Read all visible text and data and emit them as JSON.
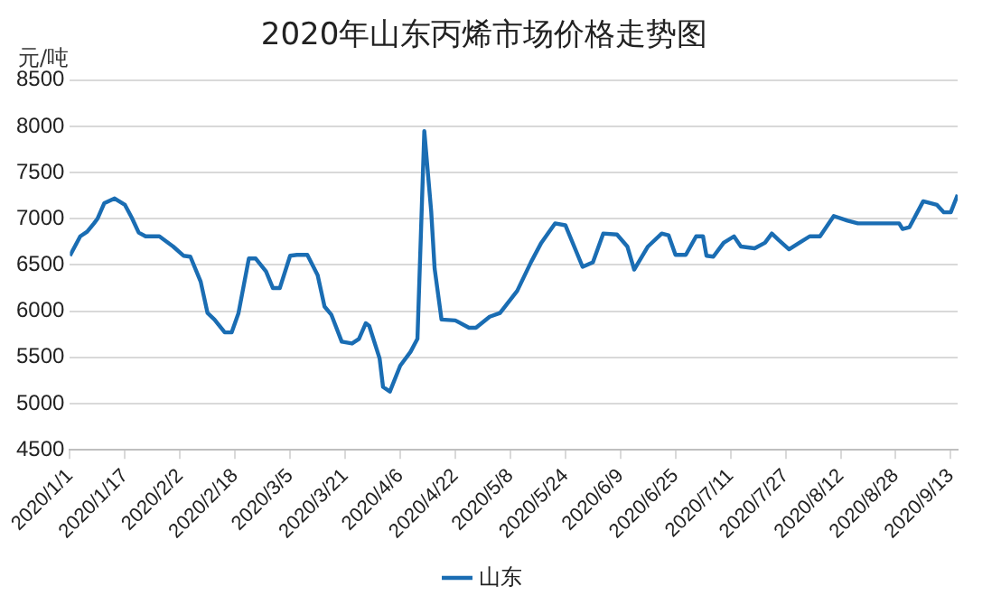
{
  "chart_data": {
    "type": "line",
    "title": "2020年山东丙烯市场价格走势图",
    "ylabel": "元/吨",
    "x": [
      "2020-01-01",
      "2020-01-04",
      "2020-01-06",
      "2020-01-08",
      "2020-01-09",
      "2020-01-11",
      "2020-01-14",
      "2020-01-17",
      "2020-01-19",
      "2020-01-21",
      "2020-01-23",
      "2020-01-27",
      "2020-01-31",
      "2020-02-03",
      "2020-02-05",
      "2020-02-08",
      "2020-02-10",
      "2020-02-12",
      "2020-02-15",
      "2020-02-17",
      "2020-02-19",
      "2020-02-22",
      "2020-02-24",
      "2020-02-27",
      "2020-02-29",
      "2020-03-02",
      "2020-03-05",
      "2020-03-07",
      "2020-03-10",
      "2020-03-13",
      "2020-03-15",
      "2020-03-17",
      "2020-03-20",
      "2020-03-23",
      "2020-03-25",
      "2020-03-27",
      "2020-03-28",
      "2020-03-31",
      "2020-04-01",
      "2020-04-03",
      "2020-04-06",
      "2020-04-09",
      "2020-04-11",
      "2020-04-13",
      "2020-04-15",
      "2020-04-16",
      "2020-04-18",
      "2020-04-22",
      "2020-04-26",
      "2020-04-28",
      "2020-05-02",
      "2020-05-05",
      "2020-05-10",
      "2020-05-14",
      "2020-05-17",
      "2020-05-21",
      "2020-05-24",
      "2020-05-29",
      "2020-06-01",
      "2020-06-04",
      "2020-06-08",
      "2020-06-11",
      "2020-06-13",
      "2020-06-17",
      "2020-06-21",
      "2020-06-23",
      "2020-06-25",
      "2020-06-28",
      "2020-07-01",
      "2020-07-03",
      "2020-07-04",
      "2020-07-06",
      "2020-07-09",
      "2020-07-12",
      "2020-07-14",
      "2020-07-18",
      "2020-07-21",
      "2020-07-23",
      "2020-07-25",
      "2020-07-28",
      "2020-07-31",
      "2020-08-03",
      "2020-08-06",
      "2020-08-10",
      "2020-08-14",
      "2020-08-17",
      "2020-08-29",
      "2020-08-30",
      "2020-09-01",
      "2020-09-05",
      "2020-09-09",
      "2020-09-11",
      "2020-09-13",
      "2020-09-15"
    ],
    "series": [
      {
        "name": "山东",
        "color": "#1a6db3",
        "values": [
          6600,
          6810,
          6860,
          6950,
          7000,
          7170,
          7220,
          7150,
          7010,
          6850,
          6810,
          6810,
          6700,
          6600,
          6590,
          6320,
          5980,
          5910,
          5770,
          5770,
          5980,
          6570,
          6570,
          6430,
          6250,
          6250,
          6600,
          6610,
          6610,
          6390,
          6050,
          5960,
          5670,
          5650,
          5700,
          5870,
          5840,
          5490,
          5180,
          5130,
          5410,
          5560,
          5700,
          7950,
          7080,
          6460,
          5910,
          5900,
          5820,
          5820,
          5940,
          5980,
          6220,
          6530,
          6740,
          6950,
          6930,
          6480,
          6530,
          6840,
          6830,
          6700,
          6450,
          6700,
          6840,
          6820,
          6610,
          6610,
          6810,
          6810,
          6600,
          6590,
          6740,
          6810,
          6700,
          6680,
          6740,
          6840,
          6770,
          6670,
          6740,
          6810,
          6810,
          7030,
          6980,
          6950,
          6950,
          6890,
          6910,
          7190,
          7150,
          7070,
          7070,
          7260
        ]
      }
    ],
    "xlim": [
      "2020-01-01",
      "2020-09-15"
    ],
    "xticks": [
      {
        "value": "2020-01-01",
        "label": "2020/1/1"
      },
      {
        "value": "2020-01-17",
        "label": "2020/1/17"
      },
      {
        "value": "2020-02-02",
        "label": "2020/2/2"
      },
      {
        "value": "2020-02-18",
        "label": "2020/2/18"
      },
      {
        "value": "2020-03-05",
        "label": "2020/3/5"
      },
      {
        "value": "2020-03-21",
        "label": "2020/3/21"
      },
      {
        "value": "2020-04-06",
        "label": "2020/4/6"
      },
      {
        "value": "2020-04-22",
        "label": "2020/4/22"
      },
      {
        "value": "2020-05-08",
        "label": "2020/5/8"
      },
      {
        "value": "2020-05-24",
        "label": "2020/5/24"
      },
      {
        "value": "2020-06-09",
        "label": "2020/6/9"
      },
      {
        "value": "2020-06-25",
        "label": "2020/6/25"
      },
      {
        "value": "2020-07-11",
        "label": "2020/7/11"
      },
      {
        "value": "2020-07-27",
        "label": "2020/7/27"
      },
      {
        "value": "2020-08-12",
        "label": "2020/8/12"
      },
      {
        "value": "2020-08-28",
        "label": "2020/8/28"
      },
      {
        "value": "2020-09-13",
        "label": "2020/9/13"
      }
    ],
    "ylim": [
      4500,
      8500
    ],
    "yticks": [
      4500,
      5000,
      5500,
      6000,
      6500,
      7000,
      7500,
      8000,
      8500
    ],
    "grid": "y",
    "legend": "bottom",
    "marker": "none",
    "line_style": "solid"
  }
}
